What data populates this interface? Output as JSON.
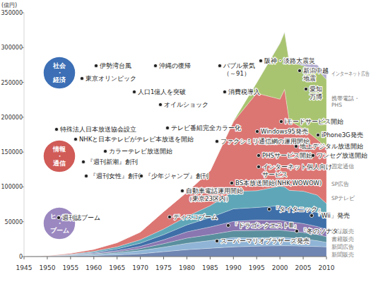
{
  "chart_data": {
    "type": "area",
    "stacked": true,
    "ylabel": "(億円)",
    "x": [
      1945,
      1950,
      1955,
      1960,
      1965,
      1970,
      1975,
      1980,
      1985,
      1990,
      1995,
      2000,
      2001,
      2002,
      2005,
      2008,
      2010
    ],
    "xlim": [
      1945,
      2010
    ],
    "xticks": [
      1945,
      1950,
      1955,
      1960,
      1965,
      1970,
      1975,
      1980,
      1985,
      1990,
      1995,
      2000,
      2005,
      2010
    ],
    "ylim": [
      0,
      350000
    ],
    "yticks": [
      0,
      50000,
      100000,
      150000,
      200000,
      250000,
      300000,
      350000
    ],
    "grid": false,
    "series": [
      {
        "name": "新聞販売",
        "color": "#6f86b3",
        "values": [
          0,
          200,
          800,
          1500,
          2500,
          4000,
          7000,
          10000,
          12000,
          14000,
          15000,
          15500,
          15500,
          15500,
          15000,
          14500,
          14000
        ]
      },
      {
        "name": "新聞広告",
        "color": "#8fb4d6",
        "values": [
          0,
          200,
          800,
          1500,
          2500,
          4500,
          6500,
          9000,
          11000,
          13500,
          12000,
          12500,
          12000,
          11500,
          10400,
          8300,
          6400
        ]
      },
      {
        "name": "書籍販売",
        "color": "#5a8f9e",
        "values": [
          0,
          200,
          500,
          1000,
          1700,
          3000,
          5000,
          7500,
          8500,
          9500,
          10500,
          10000,
          9800,
          9500,
          9200,
          8900,
          8200
        ]
      },
      {
        "name": "雑誌販売",
        "color": "#8a76b0",
        "values": [
          0,
          200,
          500,
          1000,
          1800,
          3200,
          5500,
          9000,
          11000,
          13500,
          15000,
          14000,
          13800,
          13500,
          12800,
          11500,
          10500
        ]
      },
      {
        "name": "SPテレビ",
        "color": "#3f6fa8",
        "values": [
          0,
          0,
          200,
          1000,
          2500,
          4500,
          7500,
          10000,
          13500,
          18000,
          18000,
          21000,
          21000,
          20000,
          20500,
          20000,
          17000
        ]
      },
      {
        "name": "SP広告",
        "color": "#5fa7b8",
        "values": [
          0,
          0,
          500,
          1500,
          3000,
          5000,
          8000,
          12000,
          17000,
          25000,
          24000,
          28000,
          28000,
          25000,
          26000,
          25000,
          20000
        ]
      },
      {
        "name": "固定通信",
        "color": "#dc7673",
        "values": [
          0,
          500,
          1500,
          3000,
          6000,
          11000,
          25000,
          35000,
          50000,
          100000,
          140000,
          125000,
          140000,
          100000,
          90000,
          80000,
          80000
        ]
      },
      {
        "name": "携帯電話・PHS",
        "color": "#a9c471",
        "values": [
          0,
          0,
          0,
          0,
          0,
          0,
          0,
          0,
          0,
          1000,
          15000,
          80000,
          82000,
          85000,
          90000,
          100000,
          98000
        ]
      },
      {
        "name": "インターネット広告",
        "color": "#b3aed0",
        "values": [
          0,
          0,
          0,
          0,
          0,
          0,
          0,
          0,
          0,
          0,
          0,
          600,
          800,
          1000,
          3800,
          7000,
          7700
        ]
      }
    ],
    "annotations": [
      {
        "label_lines": [
          "社会",
          "・",
          "経済"
        ],
        "color": "#3c6fb5",
        "items": [
          [
            "伊勢湾台風"
          ],
          [
            "東京オリンピック"
          ],
          [
            "沖縄の復帰"
          ],
          [
            "人口1億人を突破"
          ],
          [
            "オイルショック"
          ],
          [
            "バブル景気",
            "（～91）"
          ],
          [
            "消費税導入"
          ],
          [
            "阪神・淡路大震災"
          ],
          [
            "新潟中越",
            "地震"
          ],
          [
            "愛知",
            "万博"
          ]
        ]
      },
      {
        "label_lines": [
          "情報",
          "・",
          "通信"
        ],
        "color": "#d05b57",
        "items": [
          [
            "特殊法人日本放送協会設立"
          ],
          [
            "NHKと日本テレビがテレビ本放送を開始"
          ],
          [
            "カラーテレビ放送開始"
          ],
          [
            "『週刊新潮』創刊"
          ],
          [
            "『週刊女性』創刊"
          ],
          [
            "『少年ジャンプ』創刊"
          ],
          [
            "テレビ番組完全カラー化"
          ],
          [
            "ファクシミリ通信網の運用開始"
          ],
          [
            "自動車電話運用開始",
            "（東京23区内）"
          ],
          [
            "BS本放送開始(NHK,WOWOW)"
          ],
          [
            "iモードサービス開始"
          ],
          [
            "Windows95発売"
          ],
          [
            "iPhone3G発売"
          ],
          [
            "地上デジタル放送開始"
          ],
          [
            "PHSサービス開始"
          ],
          [
            "ワンセグ放送開始"
          ],
          [
            "インターネット個人向け",
            "サービス"
          ]
        ]
      },
      {
        "label_lines": [
          "ヒット",
          "・",
          "ブーム"
        ],
        "color": "#9b88c0",
        "items": [
          [
            "週刊誌ブーム"
          ],
          [
            "ディスコブーム"
          ],
          [
            "『タイタニック』"
          ],
          [
            "「Wii」発売"
          ],
          [
            "『ドラゴンクエストⅢ』"
          ],
          [
            "『冬のソナタ』"
          ],
          [
            "スーパーマリオブラザーズ発売"
          ]
        ]
      }
    ]
  }
}
